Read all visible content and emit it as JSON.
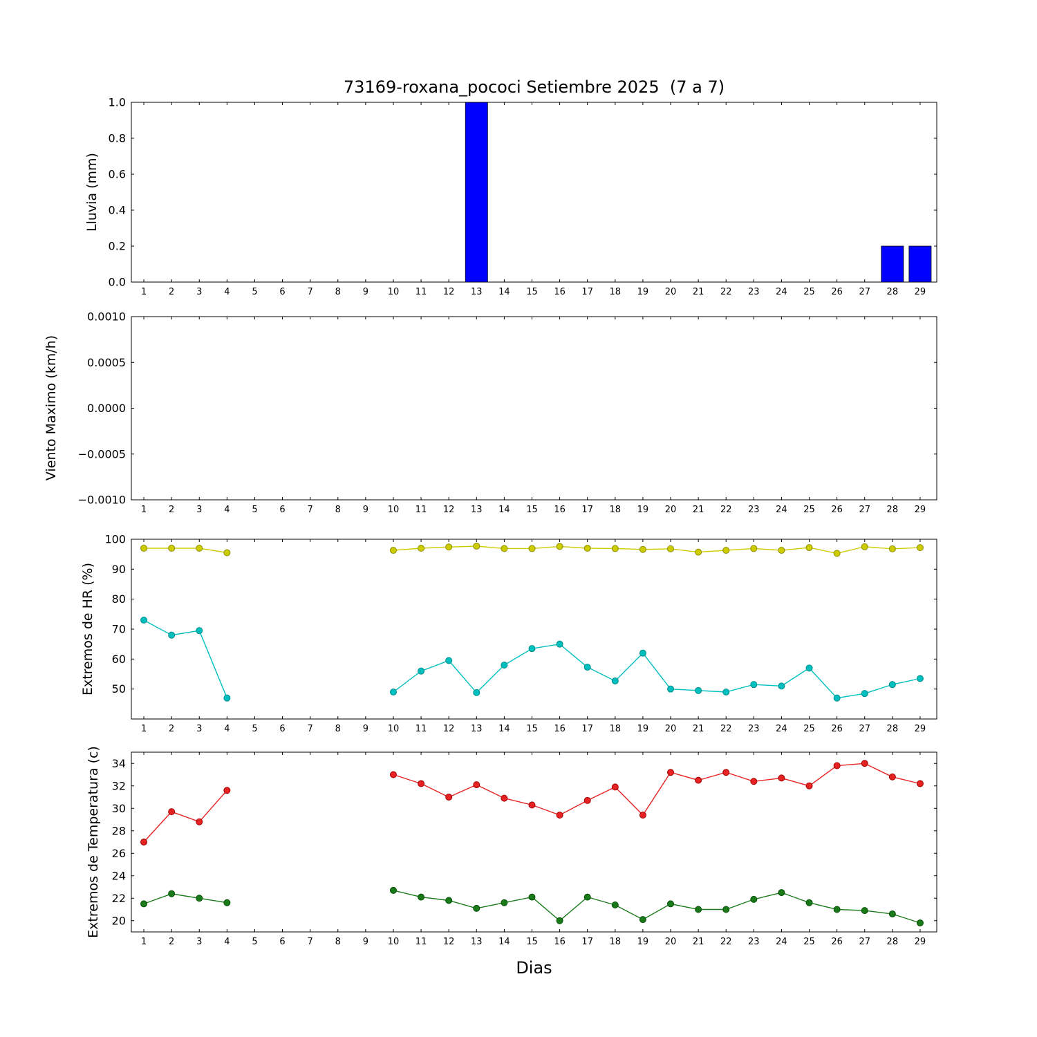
{
  "title": "73169-roxana_pococi Setiembre 2025  (7 a 7)",
  "xlabel": "Dias",
  "chart_data": [
    {
      "type": "bar",
      "ylabel": "Lluvia (mm)",
      "xlim": [
        0.55,
        29.6
      ],
      "ylim": [
        0,
        1
      ],
      "grid": false,
      "legend": "none",
      "xticks": [
        1,
        2,
        3,
        4,
        5,
        6,
        7,
        8,
        9,
        10,
        11,
        12,
        13,
        14,
        15,
        16,
        17,
        18,
        19,
        20,
        21,
        22,
        23,
        24,
        25,
        26,
        27,
        28,
        29
      ],
      "yticks": {
        "values": [
          0,
          0.2,
          0.4,
          0.6,
          0.8,
          1.0
        ],
        "labels": [
          "0.0",
          "0.2",
          "0.4",
          "0.6",
          "0.8",
          "1.0"
        ]
      },
      "x": [
        1,
        2,
        3,
        4,
        5,
        6,
        7,
        8,
        9,
        10,
        11,
        12,
        13,
        14,
        15,
        16,
        17,
        18,
        19,
        20,
        21,
        22,
        23,
        24,
        25,
        26,
        27,
        28,
        29
      ],
      "series": [
        {
          "name": "lluvia-diaria",
          "color": "#0000ff",
          "edge": "#000000",
          "values": [
            0,
            0,
            0,
            0,
            0,
            0,
            0,
            0,
            0,
            0,
            0,
            0,
            1.0,
            0,
            0,
            0,
            0,
            0,
            0,
            0,
            0,
            0,
            0,
            0,
            0,
            0,
            0,
            0.2,
            0.2
          ]
        }
      ]
    },
    {
      "type": "line",
      "ylabel": "Viento Maximo (km/h)",
      "xlim": [
        0.55,
        29.6
      ],
      "ylim": [
        -0.001,
        0.001
      ],
      "grid": false,
      "legend": "none",
      "xticks": [
        1,
        2,
        3,
        4,
        5,
        6,
        7,
        8,
        9,
        10,
        11,
        12,
        13,
        14,
        15,
        16,
        17,
        18,
        19,
        20,
        21,
        22,
        23,
        24,
        25,
        26,
        27,
        28,
        29
      ],
      "yticks": {
        "values": [
          -0.001,
          -0.0005,
          0,
          0.0005,
          0.001
        ],
        "labels": [
          "−0.0010",
          "−0.0005",
          "0.0000",
          "0.0005",
          "0.0010"
        ]
      },
      "x": [
        1,
        2,
        3,
        4,
        5,
        6,
        7,
        8,
        9,
        10,
        11,
        12,
        13,
        14,
        15,
        16,
        17,
        18,
        19,
        20,
        21,
        22,
        23,
        24,
        25,
        26,
        27,
        28,
        29
      ],
      "series": []
    },
    {
      "type": "line",
      "ylabel": "Extremos de HR (%)",
      "xlim": [
        0.55,
        29.6
      ],
      "ylim": [
        40,
        100
      ],
      "grid": false,
      "legend": "none",
      "xticks": [
        1,
        2,
        3,
        4,
        5,
        6,
        7,
        8,
        9,
        10,
        11,
        12,
        13,
        14,
        15,
        16,
        17,
        18,
        19,
        20,
        21,
        22,
        23,
        24,
        25,
        26,
        27,
        28,
        29
      ],
      "yticks": {
        "values": [
          50,
          60,
          70,
          80,
          90,
          100
        ],
        "labels": [
          "50",
          "60",
          "70",
          "80",
          "90",
          "100"
        ]
      },
      "x": [
        1,
        2,
        3,
        4,
        5,
        6,
        7,
        8,
        9,
        10,
        11,
        12,
        13,
        14,
        15,
        16,
        17,
        18,
        19,
        20,
        21,
        22,
        23,
        24,
        25,
        26,
        27,
        28,
        29
      ],
      "series": [
        {
          "name": "hr-maxima",
          "color": "#cccc00",
          "edge": "#8c8c00",
          "values": [
            97,
            97,
            97,
            95.5,
            null,
            null,
            null,
            null,
            null,
            96.3,
            97,
            97.4,
            97.7,
            96.9,
            96.9,
            97.6,
            97,
            96.9,
            96.6,
            96.8,
            95.7,
            96.3,
            96.9,
            96.3,
            97.2,
            95.3,
            97.5,
            96.8,
            97.2
          ]
        },
        {
          "name": "hr-minima",
          "color": "#00bfbf",
          "edge": "#008b8b",
          "values": [
            73,
            68,
            69.5,
            47,
            null,
            null,
            null,
            null,
            null,
            49,
            56,
            59.5,
            48.8,
            58,
            63.5,
            65,
            57.3,
            52.7,
            62,
            50,
            49.5,
            49,
            51.5,
            51,
            57,
            47,
            48.5,
            51.5,
            53.5
          ]
        }
      ]
    },
    {
      "type": "line",
      "ylabel": "Extremos de Temperatura (c)",
      "xlim": [
        0.55,
        29.6
      ],
      "ylim": [
        19,
        35
      ],
      "grid": false,
      "legend": "none",
      "xticks": [
        1,
        2,
        3,
        4,
        5,
        6,
        7,
        8,
        9,
        10,
        11,
        12,
        13,
        14,
        15,
        16,
        17,
        18,
        19,
        20,
        21,
        22,
        23,
        24,
        25,
        26,
        27,
        28,
        29
      ],
      "yticks": {
        "values": [
          20,
          22,
          24,
          26,
          28,
          30,
          32,
          34
        ],
        "labels": [
          "20",
          "22",
          "24",
          "26",
          "28",
          "30",
          "32",
          "34"
        ]
      },
      "x": [
        1,
        2,
        3,
        4,
        5,
        6,
        7,
        8,
        9,
        10,
        11,
        12,
        13,
        14,
        15,
        16,
        17,
        18,
        19,
        20,
        21,
        22,
        23,
        24,
        25,
        26,
        27,
        28,
        29
      ],
      "series": [
        {
          "name": "temperatura-maxima",
          "color": "#e62222",
          "edge": "#a00000",
          "values": [
            27,
            29.7,
            28.8,
            31.6,
            null,
            null,
            null,
            null,
            null,
            33,
            32.2,
            31,
            32.1,
            30.9,
            30.3,
            29.4,
            30.7,
            31.9,
            29.4,
            33.2,
            32.5,
            33.2,
            32.4,
            32.7,
            32,
            33.8,
            34,
            32.8,
            32.2
          ]
        },
        {
          "name": "temperatura-minima",
          "color": "#1a7a1a",
          "edge": "#004d00",
          "values": [
            21.5,
            22.4,
            22,
            21.6,
            null,
            null,
            null,
            null,
            null,
            22.7,
            22.1,
            21.8,
            21.1,
            21.6,
            22.1,
            20,
            22.1,
            21.4,
            20.1,
            21.5,
            21,
            21,
            21.9,
            22.5,
            21.6,
            21,
            20.9,
            20.6,
            19.8
          ]
        }
      ]
    }
  ]
}
